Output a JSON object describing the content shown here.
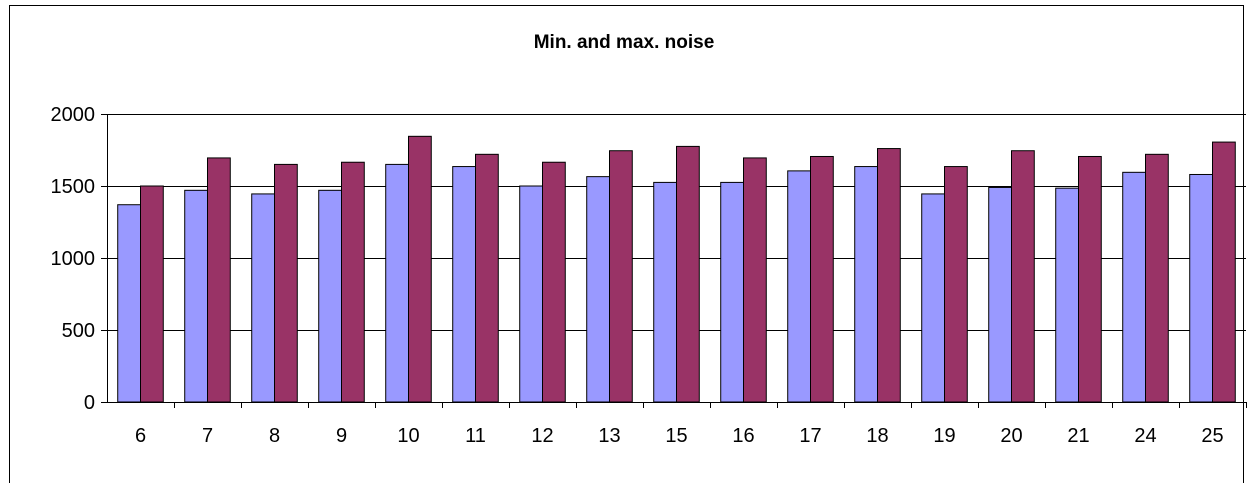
{
  "chart_data": {
    "type": "bar",
    "title": "Min. and max. noise",
    "xlabel": "",
    "ylabel": "",
    "categories": [
      "6",
      "7",
      "8",
      "9",
      "10",
      "11",
      "12",
      "13",
      "15",
      "16",
      "17",
      "18",
      "19",
      "20",
      "21",
      "24",
      "25"
    ],
    "series": [
      {
        "color": "#9999ff",
        "values": [
          1370,
          1470,
          1445,
          1470,
          1650,
          1635,
          1500,
          1565,
          1525,
          1525,
          1605,
          1635,
          1445,
          1490,
          1485,
          1595,
          1580
        ]
      },
      {
        "color": "#993366",
        "values": [
          1500,
          1695,
          1650,
          1665,
          1845,
          1720,
          1665,
          1745,
          1775,
          1695,
          1705,
          1760,
          1635,
          1745,
          1705,
          1720,
          1805
        ]
      }
    ],
    "ylim": [
      0,
      2000
    ],
    "yticks": [
      0,
      500,
      1000,
      1500,
      2000
    ],
    "grid": true,
    "legend": "none"
  }
}
